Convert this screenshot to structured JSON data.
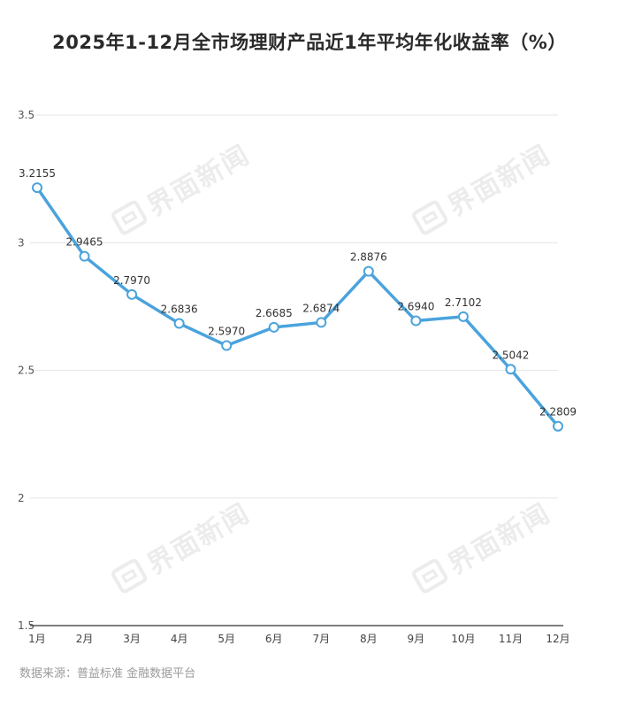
{
  "chart_data": {
    "type": "line",
    "title": "2025年1-12月全市场理财产品近1年平均年化收益率（%）",
    "categories": [
      "1月",
      "2月",
      "3月",
      "4月",
      "5月",
      "6月",
      "7月",
      "8月",
      "9月",
      "10月",
      "11月",
      "12月"
    ],
    "series": [
      {
        "values": [
          3.2155,
          2.9465,
          2.797,
          2.6836,
          2.597,
          2.6685,
          2.6874,
          2.8876,
          2.694,
          2.7102,
          2.5042,
          2.2809
        ],
        "labels": [
          "3.2155",
          "2.9465",
          "2.7970",
          "2.6836",
          "2.5970",
          "2.6685",
          "2.6874",
          "2.8876",
          "2.6940",
          "2.7102",
          "2.5042",
          "2.2809"
        ],
        "color": "#4aa3dc"
      }
    ],
    "ylim": [
      1.5,
      3.5
    ],
    "yticks": [
      1.5,
      2,
      2.5,
      3,
      3.5
    ],
    "ytick_labels": [
      "1.5",
      "2",
      "2.5",
      "3",
      "3.5"
    ],
    "grid": true,
    "legend": "none"
  },
  "source": "数据来源：普益标准 金融数据平台",
  "watermark": {
    "text": "界面新闻",
    "icon": "jiemian-logo-icon"
  },
  "colors": {
    "line": "#4aa3dc",
    "marker_fill": "#ffffff",
    "grid": "#e6e6e6",
    "axis": "#333333"
  }
}
